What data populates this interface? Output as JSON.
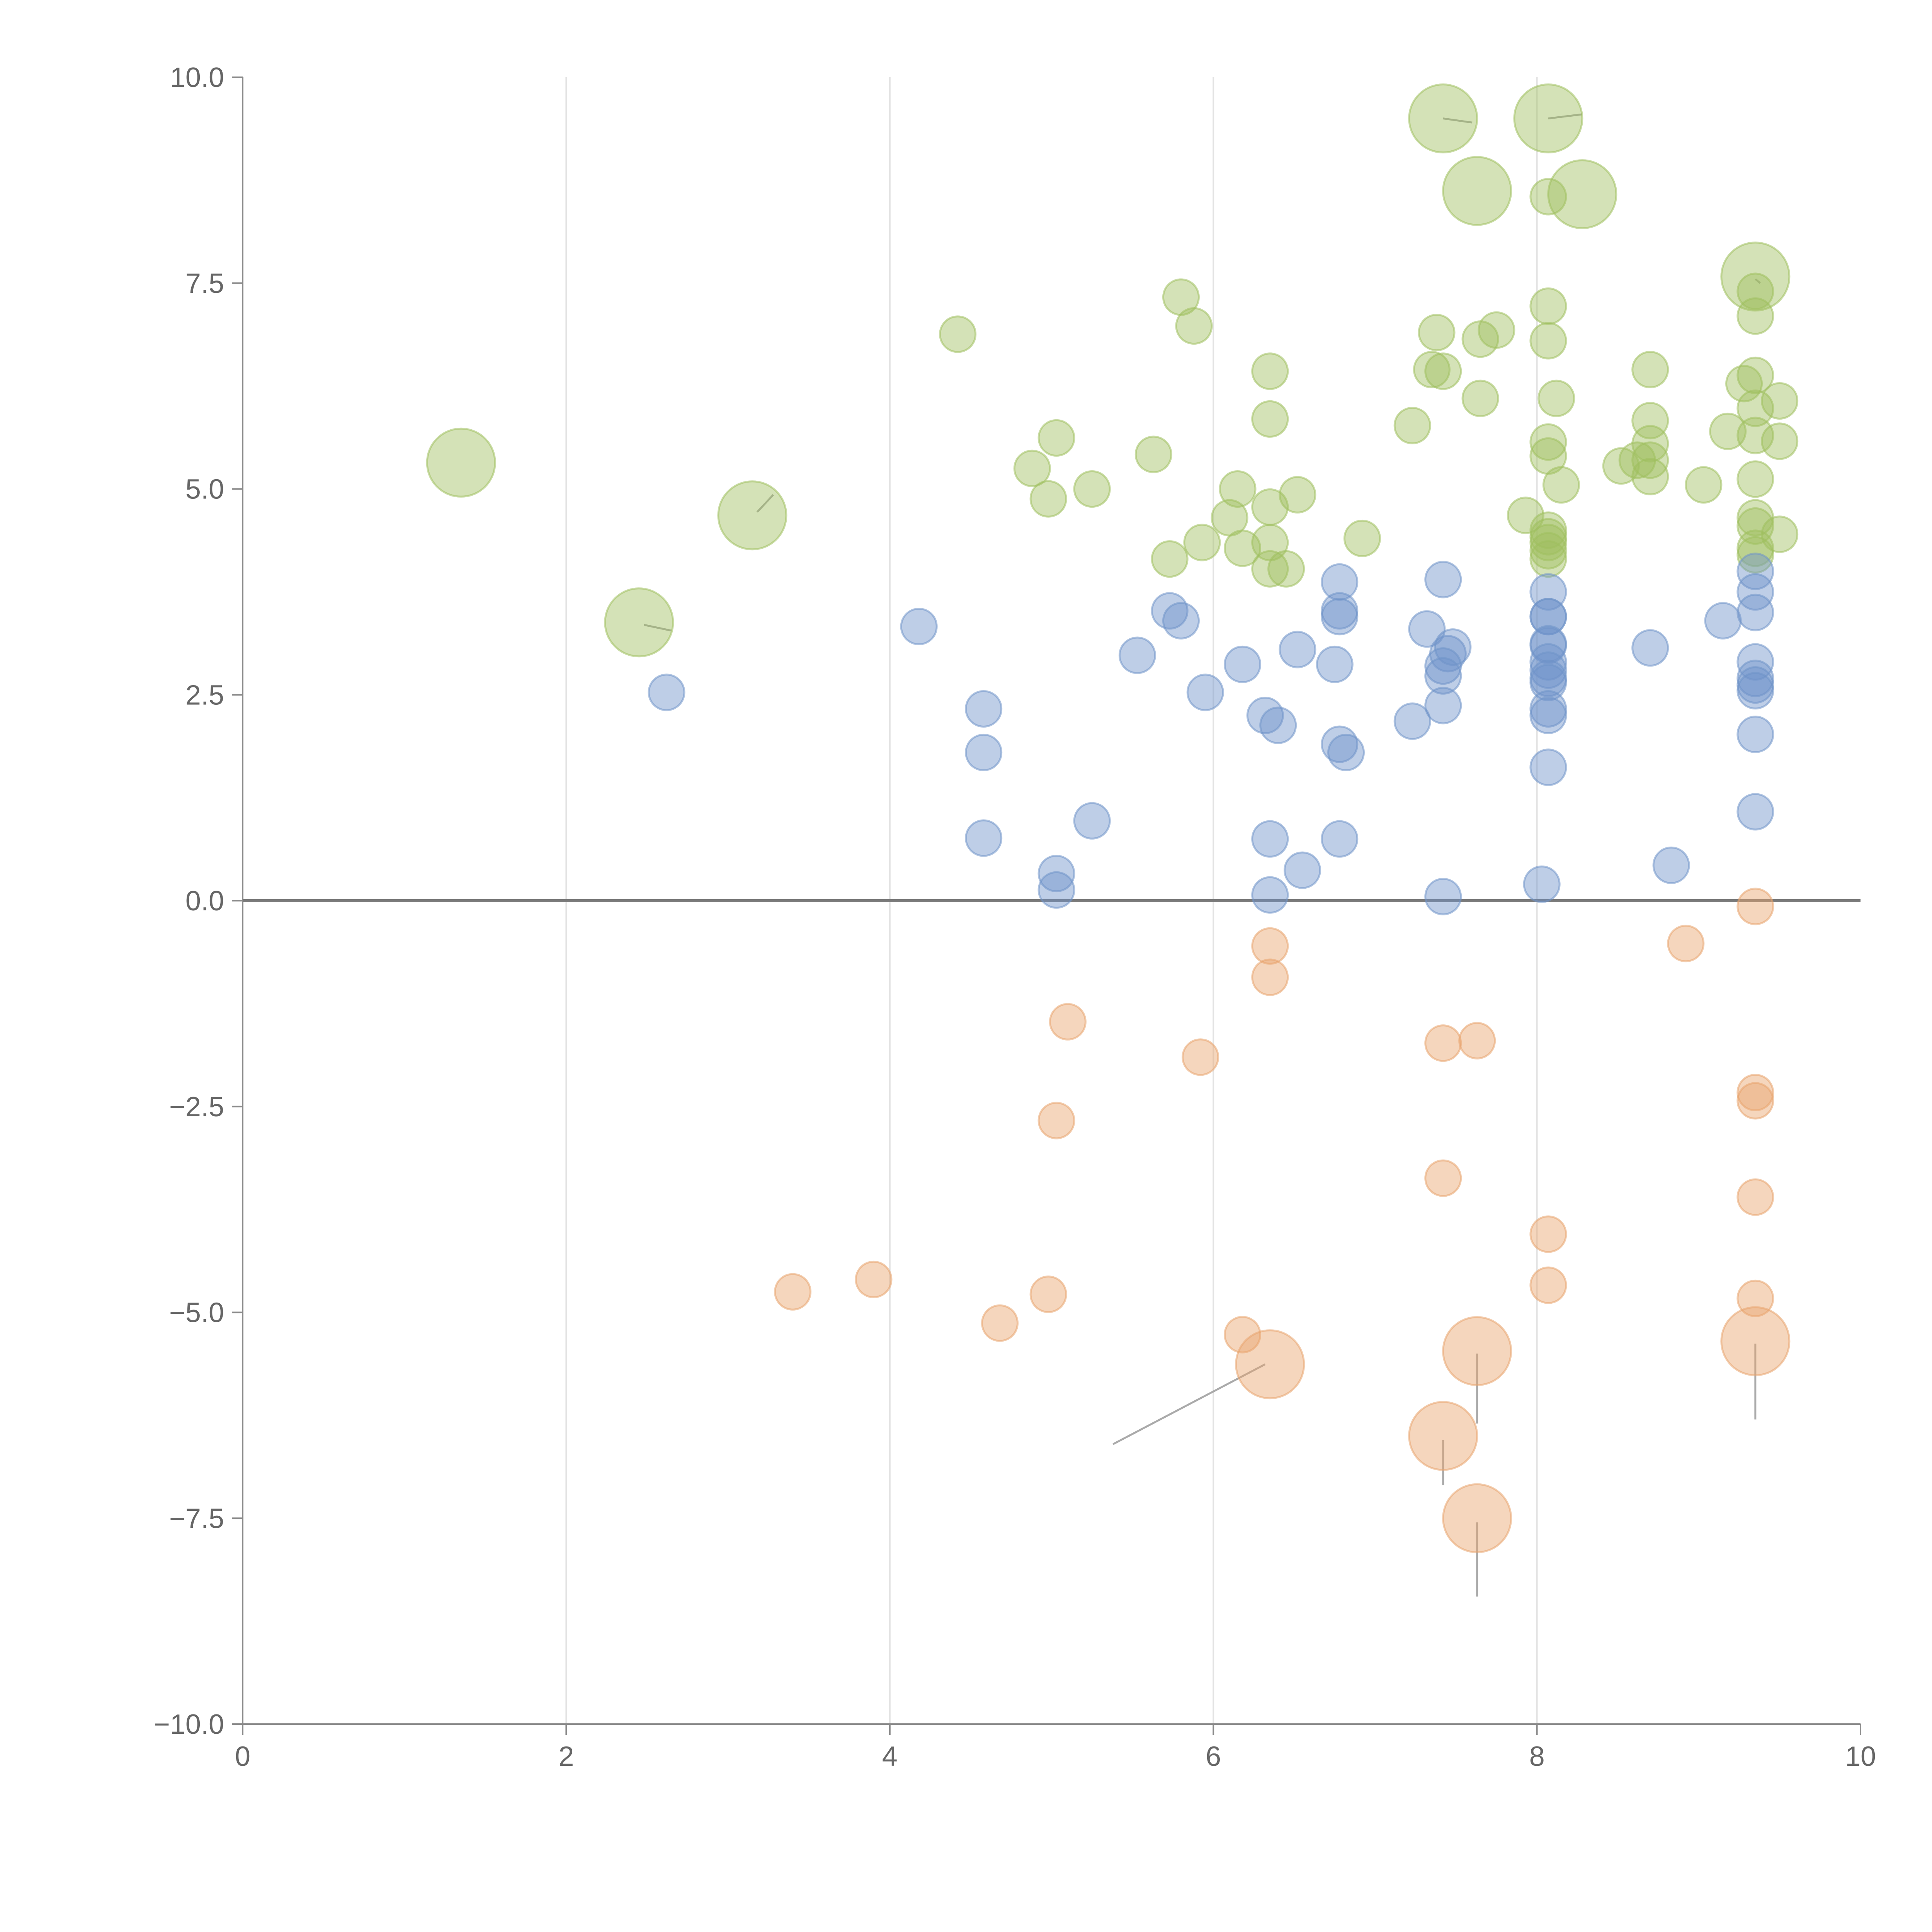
{
  "chart_data": {
    "type": "scatter",
    "title": "",
    "xlabel": "",
    "ylabel": "",
    "xlim": [
      0,
      10
    ],
    "ylim": [
      -10,
      10
    ],
    "x_ticks": [
      "0",
      "2",
      "4",
      "6",
      "8",
      "10"
    ],
    "y_ticks": [
      "10.0",
      "7.5",
      "5.0",
      "2.5",
      "0.0",
      "−2.5",
      "−5.0",
      "−7.5",
      "−10.0"
    ],
    "x_grid": [
      2,
      4,
      6,
      8
    ],
    "colors": {
      "green": "#9fbf5f",
      "blue": "#6f93c9",
      "orange": "#e8a46d",
      "axis": "#8a8a8a"
    },
    "series": [
      {
        "name": "green",
        "color": "#9fbf5f",
        "points": [
          [
            1.35,
            5.32,
            3
          ],
          [
            2.45,
            3.38,
            3
          ],
          [
            3.15,
            4.68,
            3
          ],
          [
            4.42,
            6.88,
            1
          ],
          [
            4.88,
            5.25,
            1
          ],
          [
            5.03,
            5.62,
            1
          ],
          [
            4.98,
            4.88,
            1
          ],
          [
            5.25,
            5.0,
            1
          ],
          [
            5.63,
            5.42,
            1
          ],
          [
            5.8,
            7.33,
            1
          ],
          [
            5.88,
            6.98,
            1
          ],
          [
            5.73,
            4.15,
            1
          ],
          [
            5.93,
            4.35,
            1
          ],
          [
            6.1,
            4.65,
            1
          ],
          [
            6.15,
            5.0,
            1
          ],
          [
            6.18,
            4.28,
            1
          ],
          [
            6.35,
            6.43,
            1
          ],
          [
            6.35,
            5.85,
            1
          ],
          [
            6.35,
            4.78,
            1
          ],
          [
            6.35,
            4.35,
            1
          ],
          [
            6.35,
            4.03,
            1
          ],
          [
            6.45,
            4.03,
            1
          ],
          [
            6.52,
            4.93,
            1
          ],
          [
            6.92,
            4.4,
            1
          ],
          [
            7.23,
            5.77,
            1
          ],
          [
            7.35,
            6.45,
            1
          ],
          [
            7.38,
            6.9,
            1
          ],
          [
            7.42,
            6.43,
            1
          ],
          [
            7.42,
            9.5,
            3
          ],
          [
            7.63,
            8.62,
            3
          ],
          [
            7.65,
            6.82,
            1
          ],
          [
            7.65,
            6.1,
            1
          ],
          [
            7.75,
            6.93,
            1
          ],
          [
            7.93,
            4.68,
            1
          ],
          [
            8.07,
            9.5,
            3
          ],
          [
            8.07,
            8.55,
            1
          ],
          [
            8.07,
            7.22,
            1
          ],
          [
            8.07,
            6.8,
            1
          ],
          [
            8.12,
            6.1,
            1
          ],
          [
            8.07,
            5.57,
            1
          ],
          [
            8.07,
            5.4,
            1
          ],
          [
            8.15,
            5.05,
            1
          ],
          [
            8.07,
            4.5,
            1
          ],
          [
            8.07,
            4.42,
            1
          ],
          [
            8.07,
            4.35,
            1
          ],
          [
            8.07,
            4.25,
            1
          ],
          [
            8.07,
            4.15,
            1
          ],
          [
            8.28,
            8.58,
            3
          ],
          [
            8.52,
            5.28,
            1
          ],
          [
            8.62,
            5.35,
            1
          ],
          [
            8.7,
            6.45,
            1
          ],
          [
            8.7,
            5.83,
            1
          ],
          [
            8.7,
            5.55,
            1
          ],
          [
            8.7,
            5.35,
            1
          ],
          [
            8.7,
            5.15,
            1
          ],
          [
            9.03,
            5.05,
            1
          ],
          [
            9.18,
            5.7,
            1
          ],
          [
            9.28,
            6.28,
            1
          ],
          [
            9.35,
            7.58,
            3
          ],
          [
            9.35,
            7.4,
            1
          ],
          [
            9.35,
            7.1,
            1
          ],
          [
            9.35,
            6.38,
            1
          ],
          [
            9.35,
            5.98,
            1
          ],
          [
            9.35,
            5.65,
            1
          ],
          [
            9.35,
            5.12,
            1
          ],
          [
            9.35,
            4.65,
            1
          ],
          [
            9.35,
            4.55,
            1
          ],
          [
            9.35,
            4.28,
            1
          ],
          [
            9.35,
            4.2,
            1
          ],
          [
            9.5,
            6.07,
            1
          ],
          [
            9.5,
            5.58,
            1
          ],
          [
            9.5,
            4.45,
            1
          ]
        ]
      },
      {
        "name": "blue",
        "color": "#6f93c9",
        "points": [
          [
            2.62,
            2.53,
            1
          ],
          [
            4.18,
            3.33,
            1
          ],
          [
            4.58,
            2.33,
            1
          ],
          [
            4.58,
            1.8,
            1
          ],
          [
            4.58,
            0.76,
            1
          ],
          [
            5.03,
            0.33,
            1
          ],
          [
            5.03,
            0.13,
            1
          ],
          [
            5.25,
            0.97,
            1
          ],
          [
            5.53,
            2.98,
            1
          ],
          [
            5.73,
            3.52,
            1
          ],
          [
            5.8,
            3.4,
            1
          ],
          [
            5.95,
            2.53,
            1
          ],
          [
            6.18,
            2.87,
            1
          ],
          [
            6.32,
            2.25,
            1
          ],
          [
            6.4,
            2.13,
            1
          ],
          [
            6.35,
            0.75,
            1
          ],
          [
            6.35,
            0.07,
            1
          ],
          [
            6.55,
            0.37,
            1
          ],
          [
            6.52,
            3.05,
            1
          ],
          [
            6.78,
            3.87,
            1
          ],
          [
            6.78,
            3.52,
            1
          ],
          [
            6.78,
            3.45,
            1
          ],
          [
            6.75,
            2.87,
            1
          ],
          [
            6.78,
            1.9,
            1
          ],
          [
            6.82,
            1.8,
            1
          ],
          [
            6.78,
            0.75,
            1
          ],
          [
            7.23,
            2.18,
            1
          ],
          [
            7.32,
            3.3,
            1
          ],
          [
            7.42,
            3.9,
            1
          ],
          [
            7.45,
            3.0,
            1
          ],
          [
            7.48,
            3.08,
            1
          ],
          [
            7.42,
            2.85,
            1
          ],
          [
            7.42,
            2.73,
            1
          ],
          [
            7.42,
            2.37,
            1
          ],
          [
            7.42,
            0.05,
            1
          ],
          [
            8.07,
            3.75,
            1
          ],
          [
            8.07,
            3.45,
            1
          ],
          [
            8.07,
            3.45,
            1
          ],
          [
            8.07,
            3.12,
            1
          ],
          [
            8.07,
            3.1,
            1
          ],
          [
            8.07,
            2.9,
            1
          ],
          [
            8.07,
            2.8,
            1
          ],
          [
            8.07,
            2.7,
            1
          ],
          [
            8.07,
            2.65,
            1
          ],
          [
            8.07,
            2.33,
            1
          ],
          [
            8.07,
            2.25,
            1
          ],
          [
            8.07,
            1.62,
            1
          ],
          [
            8.03,
            0.2,
            1
          ],
          [
            8.7,
            3.07,
            1
          ],
          [
            8.83,
            0.43,
            1
          ],
          [
            9.15,
            3.4,
            1
          ],
          [
            9.35,
            4.0,
            1
          ],
          [
            9.35,
            3.75,
            1
          ],
          [
            9.35,
            3.5,
            1
          ],
          [
            9.35,
            2.9,
            1
          ],
          [
            9.35,
            2.7,
            1
          ],
          [
            9.35,
            2.62,
            1
          ],
          [
            9.35,
            2.55,
            1
          ],
          [
            9.35,
            2.02,
            1
          ],
          [
            9.35,
            1.08,
            1
          ]
        ]
      },
      {
        "name": "orange",
        "color": "#e8a46d",
        "points": [
          [
            3.4,
            -4.75,
            1
          ],
          [
            3.9,
            -4.6,
            1
          ],
          [
            4.68,
            -5.13,
            1
          ],
          [
            4.98,
            -4.78,
            1
          ],
          [
            5.03,
            -2.67,
            1
          ],
          [
            5.1,
            -1.47,
            1
          ],
          [
            5.92,
            -1.9,
            1
          ],
          [
            6.18,
            -5.27,
            1
          ],
          [
            6.35,
            -5.63,
            3
          ],
          [
            6.35,
            -0.55,
            1
          ],
          [
            6.35,
            -0.93,
            1
          ],
          [
            7.42,
            -1.73,
            1
          ],
          [
            7.63,
            -1.7,
            1
          ],
          [
            7.42,
            -3.37,
            1
          ],
          [
            7.42,
            -6.5,
            3
          ],
          [
            7.63,
            -5.47,
            3
          ],
          [
            7.63,
            -7.5,
            3
          ],
          [
            8.07,
            -4.05,
            1
          ],
          [
            8.07,
            -4.67,
            1
          ],
          [
            8.92,
            -0.52,
            1
          ],
          [
            9.35,
            -0.07,
            1
          ],
          [
            9.35,
            -2.33,
            1
          ],
          [
            9.35,
            -2.43,
            1
          ],
          [
            9.35,
            -3.6,
            1
          ],
          [
            9.35,
            -4.83,
            1
          ],
          [
            9.35,
            -5.35,
            3
          ]
        ]
      }
    ],
    "leader_lines": [
      [
        [
          3.18,
          4.72
        ],
        [
          3.28,
          4.93
        ]
      ],
      [
        [
          2.48,
          3.35
        ],
        [
          2.65,
          3.28
        ]
      ],
      [
        [
          7.42,
          9.5
        ],
        [
          7.6,
          9.45
        ]
      ],
      [
        [
          8.07,
          9.5
        ],
        [
          8.28,
          9.55
        ]
      ],
      [
        [
          9.35,
          7.55
        ],
        [
          9.38,
          7.5
        ]
      ],
      [
        [
          6.32,
          -5.63
        ],
        [
          5.38,
          -6.6
        ]
      ],
      [
        [
          7.63,
          -5.5
        ],
        [
          7.63,
          -6.35
        ]
      ],
      [
        [
          7.42,
          -6.55
        ],
        [
          7.42,
          -7.1
        ]
      ],
      [
        [
          7.63,
          -7.55
        ],
        [
          7.63,
          -8.45
        ]
      ],
      [
        [
          9.35,
          -5.38
        ],
        [
          9.35,
          -6.3
        ]
      ]
    ]
  }
}
